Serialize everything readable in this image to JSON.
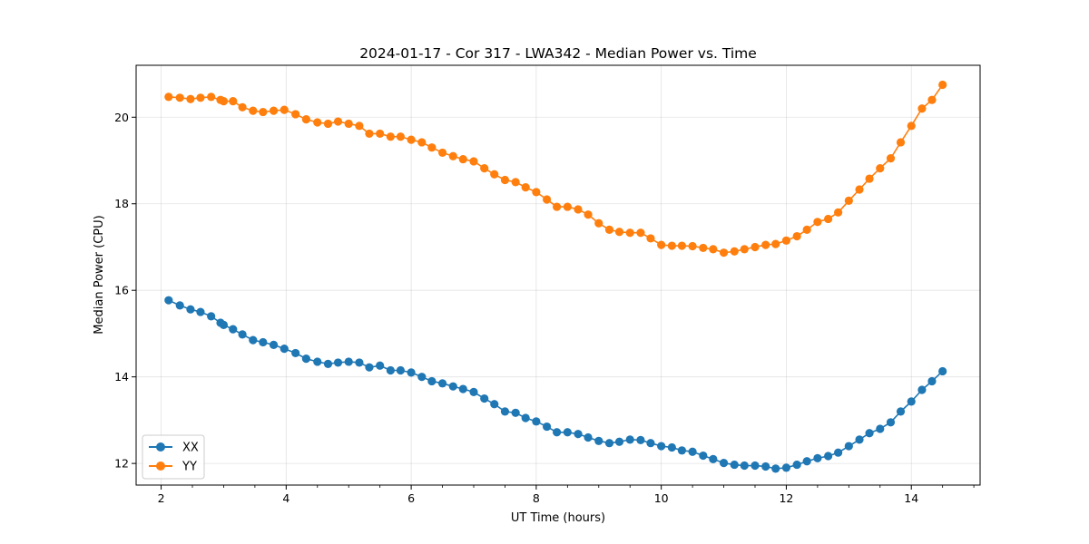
{
  "chart_data": {
    "type": "line",
    "title": "2024-01-17 - Cor 317 - LWA342 - Median Power vs. Time",
    "xlabel": "UT Time (hours)",
    "ylabel": "Median Power (CPU)",
    "xlim": [
      1.6,
      15.1
    ],
    "ylim": [
      11.5,
      21.2
    ],
    "xticks": [
      2,
      4,
      6,
      8,
      10,
      12,
      14
    ],
    "xtick_labels": [
      "2",
      "4",
      "6",
      "8",
      "10",
      "12",
      "14"
    ],
    "xminor_step": 0.5,
    "yticks": [
      12,
      14,
      16,
      18,
      20
    ],
    "ytick_labels": [
      "12",
      "14",
      "16",
      "18",
      "20"
    ],
    "grid": true,
    "legend_position": "lower-left",
    "x": [
      2.12,
      2.3,
      2.47,
      2.63,
      2.8,
      2.95,
      3.0,
      3.15,
      3.3,
      3.47,
      3.63,
      3.8,
      3.97,
      4.15,
      4.32,
      4.5,
      4.67,
      4.83,
      5.0,
      5.17,
      5.33,
      5.5,
      5.67,
      5.83,
      6.0,
      6.17,
      6.33,
      6.5,
      6.67,
      6.83,
      7.0,
      7.17,
      7.33,
      7.5,
      7.67,
      7.83,
      8.0,
      8.17,
      8.33,
      8.5,
      8.67,
      8.83,
      9.0,
      9.17,
      9.33,
      9.5,
      9.67,
      9.83,
      10.0,
      10.17,
      10.33,
      10.5,
      10.67,
      10.83,
      11.0,
      11.17,
      11.33,
      11.5,
      11.67,
      11.83,
      12.0,
      12.17,
      12.33,
      12.5,
      12.67,
      12.83,
      13.0,
      13.17,
      13.33,
      13.5,
      13.67,
      13.83,
      14.0,
      14.17,
      14.33,
      14.5
    ],
    "series": [
      {
        "name": "XX",
        "color": "#1f77b4",
        "values": [
          15.77,
          15.65,
          15.56,
          15.5,
          15.4,
          15.25,
          15.2,
          15.1,
          14.98,
          14.85,
          14.8,
          14.74,
          14.65,
          14.55,
          14.42,
          14.35,
          14.3,
          14.33,
          14.35,
          14.33,
          14.22,
          14.26,
          14.15,
          14.15,
          14.1,
          14.0,
          13.9,
          13.85,
          13.78,
          13.72,
          13.65,
          13.5,
          13.37,
          13.2,
          13.17,
          13.05,
          12.97,
          12.85,
          12.72,
          12.72,
          12.68,
          12.6,
          12.52,
          12.47,
          12.5,
          12.55,
          12.54,
          12.47,
          12.4,
          12.37,
          12.3,
          12.27,
          12.18,
          12.1,
          12.01,
          11.97,
          11.95,
          11.95,
          11.93,
          11.88,
          11.9,
          11.97,
          12.05,
          12.12,
          12.17,
          12.25,
          12.4,
          12.55,
          12.7,
          12.8,
          12.95,
          13.2,
          13.43,
          13.7,
          13.9,
          14.13
        ]
      },
      {
        "name": "YY",
        "color": "#ff7f0e",
        "values": [
          20.47,
          20.45,
          20.42,
          20.45,
          20.47,
          20.4,
          20.37,
          20.37,
          20.23,
          20.15,
          20.12,
          20.15,
          20.17,
          20.07,
          19.95,
          19.88,
          19.85,
          19.9,
          19.85,
          19.8,
          19.62,
          19.62,
          19.55,
          19.55,
          19.48,
          19.42,
          19.3,
          19.18,
          19.1,
          19.03,
          18.98,
          18.82,
          18.68,
          18.55,
          18.5,
          18.38,
          18.27,
          18.1,
          17.93,
          17.93,
          17.87,
          17.75,
          17.55,
          17.4,
          17.35,
          17.33,
          17.33,
          17.2,
          17.05,
          17.03,
          17.03,
          17.02,
          16.98,
          16.95,
          16.87,
          16.9,
          16.95,
          17.0,
          17.05,
          17.07,
          17.15,
          17.25,
          17.4,
          17.58,
          17.65,
          17.8,
          18.07,
          18.33,
          18.58,
          18.82,
          19.05,
          19.42,
          19.8,
          20.2,
          20.4,
          20.75
        ]
      }
    ]
  }
}
